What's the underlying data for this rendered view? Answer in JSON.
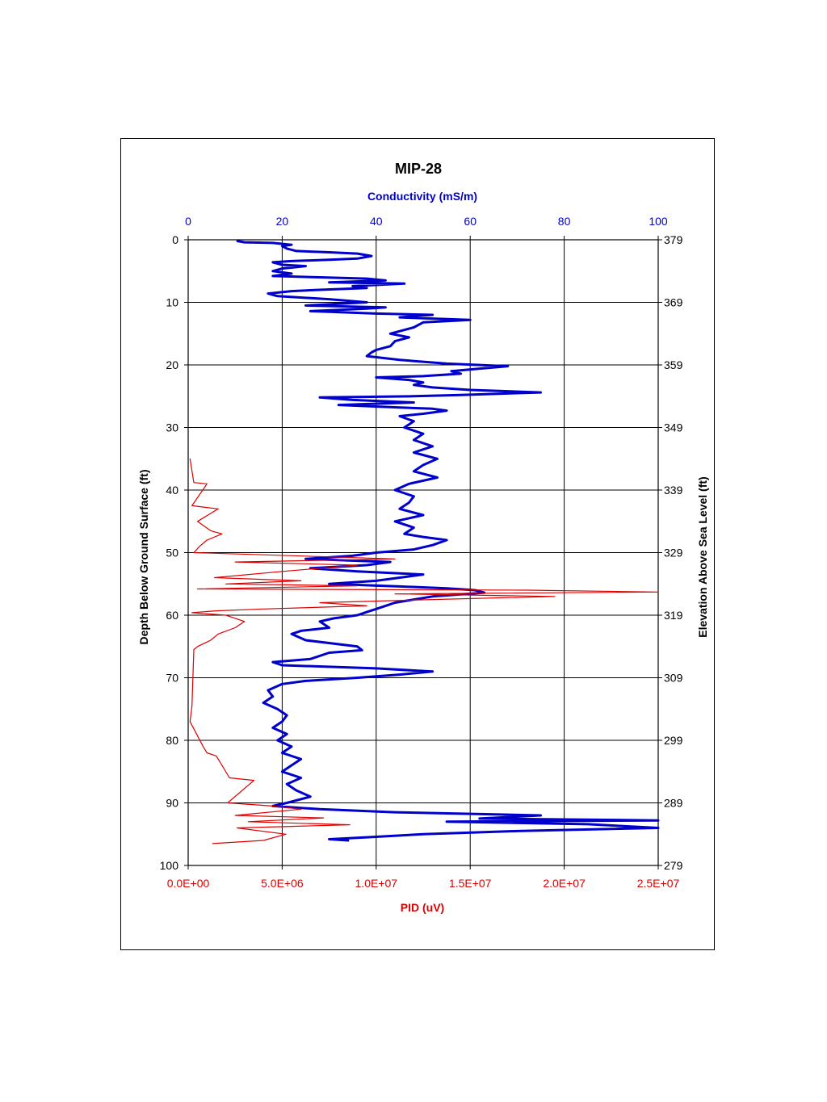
{
  "chart_data": {
    "type": "line",
    "title": "MIP-28",
    "top_axis": {
      "label": "Conductivity (mS/m)",
      "range": [
        0,
        100
      ],
      "ticks": [
        "0",
        "20",
        "40",
        "60",
        "80",
        "100"
      ],
      "color": "#0000cc"
    },
    "bottom_axis": {
      "label": "PID (uV)",
      "range": [
        0,
        25000000
      ],
      "ticks": [
        "0.0E+00",
        "5.0E+06",
        "1.0E+07",
        "1.5E+07",
        "2.0E+07",
        "2.5E+07"
      ],
      "color": "#dd0000"
    },
    "left_axis": {
      "label": "Depth Below Ground Surface (ft)",
      "range": [
        0,
        100
      ],
      "reversed": true,
      "ticks": [
        "0",
        "10",
        "20",
        "30",
        "40",
        "50",
        "60",
        "70",
        "80",
        "90",
        "100"
      ]
    },
    "right_axis": {
      "label": "Elevation Above Sea Level (ft)",
      "range": [
        379,
        279
      ],
      "ticks": [
        "379",
        "369",
        "359",
        "349",
        "339",
        "329",
        "319",
        "309",
        "299",
        "289",
        "279"
      ]
    },
    "grid": true,
    "series": [
      {
        "color": "#0000cc",
        "axis": "top",
        "points": [
          [
            10.5,
            0.2
          ],
          [
            12,
            0.4
          ],
          [
            18,
            0.5
          ],
          [
            22,
            0.8
          ],
          [
            20,
            1.0
          ],
          [
            21,
            1.4
          ],
          [
            23,
            1.8
          ],
          [
            30,
            2.0
          ],
          [
            36,
            2.2
          ],
          [
            39,
            2.6
          ],
          [
            36,
            3.0
          ],
          [
            30,
            3.2
          ],
          [
            22,
            3.4
          ],
          [
            18,
            3.6
          ],
          [
            20,
            4.0
          ],
          [
            25,
            4.2
          ],
          [
            20,
            4.6
          ],
          [
            18,
            5.0
          ],
          [
            22,
            5.4
          ],
          [
            18,
            5.8
          ],
          [
            28,
            6.0
          ],
          [
            38,
            6.2
          ],
          [
            42,
            6.5
          ],
          [
            30,
            6.8
          ],
          [
            46,
            7.0
          ],
          [
            35,
            7.4
          ],
          [
            38,
            7.7
          ],
          [
            28,
            8.0
          ],
          [
            22,
            8.2
          ],
          [
            17,
            8.6
          ],
          [
            19,
            9.0
          ],
          [
            30,
            9.5
          ],
          [
            38,
            10.0
          ],
          [
            25,
            10.5
          ],
          [
            42,
            10.8
          ],
          [
            38,
            11.0
          ],
          [
            26,
            11.4
          ],
          [
            40,
            11.8
          ],
          [
            52,
            12.0
          ],
          [
            45,
            12.4
          ],
          [
            60,
            12.8
          ],
          [
            50,
            13.2
          ],
          [
            48,
            14.0
          ],
          [
            43,
            15.0
          ],
          [
            47,
            15.6
          ],
          [
            44,
            16.2
          ],
          [
            43,
            17.0
          ],
          [
            40,
            17.6
          ],
          [
            39,
            18.0
          ],
          [
            38,
            18.6
          ],
          [
            45,
            19.2
          ],
          [
            55,
            19.8
          ],
          [
            68,
            20.2
          ],
          [
            62,
            20.6
          ],
          [
            56,
            21.0
          ],
          [
            58,
            21.4
          ],
          [
            50,
            21.8
          ],
          [
            40,
            22.0
          ],
          [
            47,
            22.4
          ],
          [
            50,
            22.8
          ],
          [
            48,
            23.2
          ],
          [
            52,
            23.6
          ],
          [
            60,
            24.0
          ],
          [
            75,
            24.4
          ],
          [
            58,
            24.8
          ],
          [
            48,
            25.0
          ],
          [
            28,
            25.2
          ],
          [
            35,
            25.6
          ],
          [
            48,
            26.0
          ],
          [
            32,
            26.4
          ],
          [
            45,
            26.8
          ],
          [
            52,
            27.0
          ],
          [
            55,
            27.3
          ],
          [
            50,
            27.8
          ],
          [
            45,
            28.2
          ],
          [
            48,
            29.0
          ],
          [
            46,
            30.0
          ],
          [
            50,
            31.0
          ],
          [
            48,
            32.0
          ],
          [
            52,
            33.0
          ],
          [
            48,
            34.0
          ],
          [
            53,
            35.0
          ],
          [
            50,
            36.0
          ],
          [
            48,
            37.0
          ],
          [
            53,
            38.0
          ],
          [
            47,
            39.0
          ],
          [
            44,
            40.0
          ],
          [
            48,
            41.0
          ],
          [
            47,
            42.0
          ],
          [
            45,
            43.0
          ],
          [
            50,
            44.0
          ],
          [
            44,
            45.0
          ],
          [
            48,
            46.0
          ],
          [
            46,
            47.0
          ],
          [
            50,
            47.5
          ],
          [
            55,
            48.0
          ],
          [
            52,
            48.8
          ],
          [
            48,
            49.5
          ],
          [
            40,
            50.0
          ],
          [
            35,
            50.5
          ],
          [
            25,
            51.0
          ],
          [
            43,
            51.5
          ],
          [
            38,
            52.0
          ],
          [
            26,
            52.5
          ],
          [
            36,
            53.0
          ],
          [
            50,
            53.5
          ],
          [
            45,
            54.0
          ],
          [
            40,
            54.5
          ],
          [
            30,
            55.0
          ],
          [
            45,
            55.4
          ],
          [
            55,
            55.7
          ],
          [
            61,
            56.0
          ],
          [
            63,
            56.4
          ],
          [
            52,
            57.0
          ],
          [
            48,
            57.5
          ],
          [
            44,
            58.0
          ],
          [
            42,
            58.5
          ],
          [
            40,
            59.0
          ],
          [
            38,
            59.5
          ],
          [
            36,
            60.0
          ],
          [
            31,
            60.5
          ],
          [
            28,
            61.0
          ],
          [
            30,
            62.0
          ],
          [
            24,
            62.5
          ],
          [
            22,
            63.0
          ],
          [
            25,
            64.0
          ],
          [
            36,
            65.0
          ],
          [
            37,
            65.6
          ],
          [
            30,
            66.0
          ],
          [
            26,
            67.0
          ],
          [
            18,
            67.5
          ],
          [
            20,
            68.0
          ],
          [
            40,
            68.5
          ],
          [
            52,
            69.0
          ],
          [
            45,
            69.5
          ],
          [
            36,
            70.0
          ],
          [
            25,
            70.5
          ],
          [
            20,
            71.0
          ],
          [
            17,
            72.0
          ],
          [
            18,
            73.0
          ],
          [
            16,
            74.0
          ],
          [
            19,
            75.0
          ],
          [
            21,
            76.0
          ],
          [
            20,
            77.0
          ],
          [
            18,
            78.0
          ],
          [
            21,
            79.0
          ],
          [
            19,
            80.0
          ],
          [
            22,
            81.0
          ],
          [
            20,
            82.0
          ],
          [
            24,
            83.0
          ],
          [
            22,
            84.0
          ],
          [
            20,
            85.0
          ],
          [
            24,
            86.0
          ],
          [
            21,
            87.0
          ],
          [
            23,
            88.0
          ],
          [
            26,
            89.0
          ],
          [
            21,
            90.0
          ],
          [
            18,
            90.5
          ],
          [
            28,
            91.0
          ],
          [
            44,
            91.5
          ],
          [
            75,
            92.0
          ],
          [
            62,
            92.5
          ],
          [
            100,
            92.8
          ],
          [
            55,
            93.0
          ],
          [
            85,
            93.4
          ],
          [
            100,
            94.0
          ],
          [
            70,
            94.5
          ],
          [
            50,
            95.0
          ],
          [
            38,
            95.5
          ],
          [
            30,
            95.8
          ],
          [
            34,
            96.0
          ]
        ]
      },
      {
        "color": "#dd0000",
        "axis": "bottom",
        "points": [
          [
            100000,
            35.0
          ],
          [
            300000,
            38.8
          ],
          [
            1000000,
            39.0
          ],
          [
            200000,
            42.5
          ],
          [
            1600000,
            43.0
          ],
          [
            500000,
            45.0
          ],
          [
            1200000,
            46.5
          ],
          [
            1800000,
            47.0
          ],
          [
            1000000,
            48.0
          ],
          [
            600000,
            49.0
          ],
          [
            300000,
            50.0
          ],
          [
            11000000,
            51.0
          ],
          [
            2500000,
            51.5
          ],
          [
            9000000,
            52.0
          ],
          [
            5000000,
            53.0
          ],
          [
            1400000,
            54.0
          ],
          [
            6000000,
            54.5
          ],
          [
            2000000,
            55.0
          ],
          [
            9000000,
            55.3
          ],
          [
            500000,
            55.8
          ],
          [
            18000000,
            56.0
          ],
          [
            25000000,
            56.3
          ],
          [
            11000000,
            56.6
          ],
          [
            19500000,
            57.0
          ],
          [
            13000000,
            57.5
          ],
          [
            7000000,
            58.0
          ],
          [
            9500000,
            58.5
          ],
          [
            4000000,
            59.0
          ],
          [
            1500000,
            59.3
          ],
          [
            200000,
            59.6
          ],
          [
            2000000,
            60.0
          ],
          [
            3000000,
            61.0
          ],
          [
            2500000,
            62.0
          ],
          [
            1600000,
            63.0
          ],
          [
            1200000,
            64.0
          ],
          [
            500000,
            65.0
          ],
          [
            300000,
            65.5
          ],
          [
            200000,
            74.5
          ],
          [
            100000,
            77.0
          ],
          [
            800000,
            81.0
          ],
          [
            1000000,
            82.0
          ],
          [
            1500000,
            82.5
          ],
          [
            2200000,
            86.0
          ],
          [
            3500000,
            86.4
          ],
          [
            2100000,
            90.0
          ],
          [
            4500000,
            90.5
          ],
          [
            6000000,
            91.0
          ],
          [
            2500000,
            92.0
          ],
          [
            7200000,
            92.4
          ],
          [
            3200000,
            93.0
          ],
          [
            8600000,
            93.5
          ],
          [
            2600000,
            94.0
          ],
          [
            5200000,
            95.0
          ],
          [
            4000000,
            96.0
          ],
          [
            1300000,
            96.5
          ]
        ]
      }
    ]
  }
}
